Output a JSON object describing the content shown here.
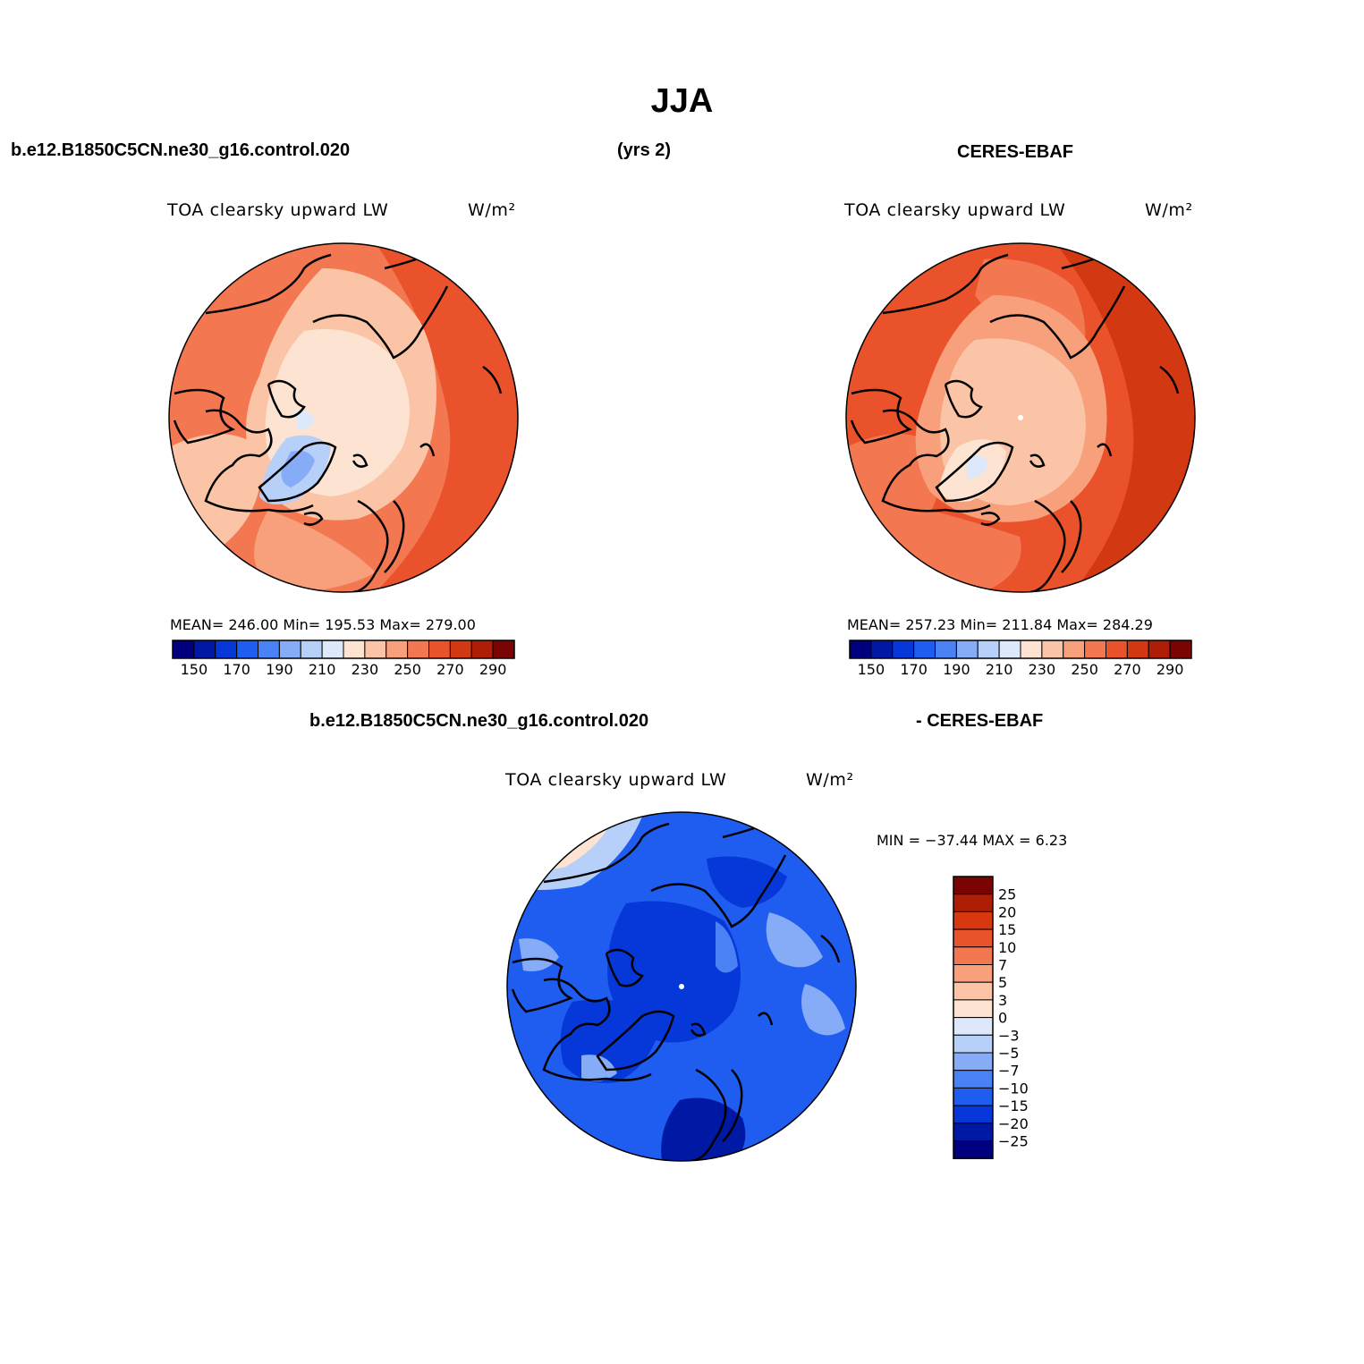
{
  "title": "JJA",
  "header": {
    "case_name": "b.e12.B1850C5CN.ne30_g16.control.020",
    "years": "(yrs 2)",
    "obs_name": "CERES-EBAF"
  },
  "diff_header": {
    "case_name": "b.e12.B1850C5CN.ne30_g16.control.020",
    "obs_name": "- CERES-EBAF"
  },
  "panels": {
    "model": {
      "variable": "TOA clearsky upward LW",
      "units": "W/m²",
      "stats": "MEAN= 246.00   Min= 195.53   Max= 279.00"
    },
    "obs": {
      "variable": "TOA clearsky upward LW",
      "units": "W/m²",
      "stats": "MEAN= 257.23   Min= 211.84   Max= 284.29"
    },
    "diff": {
      "variable": "TOA clearsky upward LW",
      "units": "W/m²",
      "stats": "MIN = −37.44 MAX =    6.23"
    }
  },
  "abs_colorbar": {
    "colors": [
      "#00007f",
      "#0019a5",
      "#0637d9",
      "#1f5cf0",
      "#4a82f5",
      "#86acf7",
      "#b7d0fa",
      "#dde9fb",
      "#fde4d2",
      "#fbc4a6",
      "#f8a07c",
      "#f37751",
      "#e9522a",
      "#d23812",
      "#ae1e06",
      "#7a0404"
    ],
    "labels": [
      "150",
      "170",
      "190",
      "210",
      "230",
      "250",
      "270",
      "290"
    ]
  },
  "diff_colorbar": {
    "colors": [
      "#7a0404",
      "#ae1e06",
      "#d8380f",
      "#e9522a",
      "#f37751",
      "#f8a07c",
      "#fbc4a6",
      "#fde4d2",
      "#dde9fb",
      "#b7d0fa",
      "#86acf7",
      "#4a82f5",
      "#1f5cf0",
      "#0637d9",
      "#0019a5",
      "#00007f"
    ],
    "labels": [
      "25",
      "20",
      "15",
      "10",
      "7",
      "5",
      "3",
      "0",
      "−3",
      "−5",
      "−7",
      "−10",
      "−15",
      "−20",
      "−25"
    ]
  }
}
